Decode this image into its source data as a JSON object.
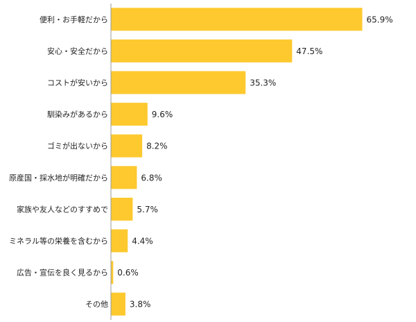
{
  "chart_data": {
    "type": "bar",
    "orientation": "horizontal",
    "title": "",
    "xlabel": "",
    "ylabel": "",
    "xlim": [
      0,
      70
    ],
    "grid": false,
    "legend": "none",
    "bar_color": "#FDC92F",
    "categories": [
      "便利・お手軽だから",
      "安心・安全だから",
      "コストが安いから",
      "馴染みがあるから",
      "ゴミが出ないから",
      "原産国・採水地が明確だから",
      "家族や友人などのすすめで",
      "ミネラル等の栄養を含むから",
      "広告・宣伝を良く見るから",
      "その他"
    ],
    "values": [
      65.9,
      47.5,
      35.3,
      9.6,
      8.2,
      6.8,
      5.7,
      4.4,
      0.6,
      3.8
    ],
    "value_labels": [
      "65.9%",
      "47.5%",
      "35.3%",
      "9.6%",
      "8.2%",
      "6.8%",
      "5.7%",
      "4.4%",
      "0.6%",
      "3.8%"
    ]
  }
}
